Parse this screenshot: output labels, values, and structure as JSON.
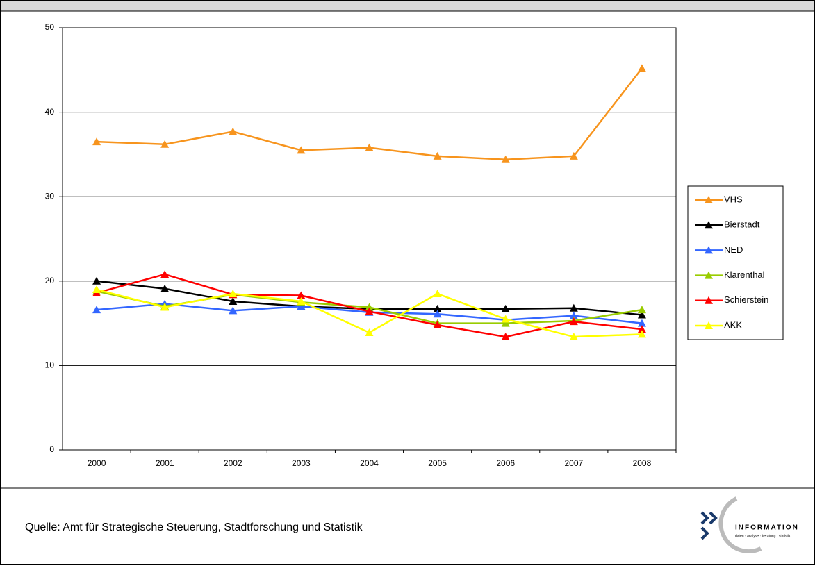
{
  "chart_data": {
    "type": "line",
    "categories": [
      "2000",
      "2001",
      "2002",
      "2003",
      "2004",
      "2005",
      "2006",
      "2007",
      "2008"
    ],
    "series": [
      {
        "name": "VHS",
        "color": "#f7941d",
        "values": [
          36.5,
          36.2,
          37.7,
          35.5,
          35.8,
          34.8,
          34.4,
          34.8,
          45.2
        ]
      },
      {
        "name": "Bierstadt",
        "color": "#000000",
        "values": [
          20.0,
          19.1,
          17.6,
          17.0,
          16.7,
          16.7,
          16.7,
          16.8,
          16.0
        ]
      },
      {
        "name": "NED",
        "color": "#3366ff",
        "values": [
          16.6,
          17.3,
          16.5,
          17.0,
          16.3,
          16.1,
          15.4,
          15.9,
          15.0
        ]
      },
      {
        "name": "Klarenthal",
        "color": "#99cc00",
        "values": [
          18.8,
          17.0,
          18.4,
          17.5,
          16.9,
          15.0,
          15.0,
          15.3,
          16.6
        ]
      },
      {
        "name": "Schierstein",
        "color": "#ff0000",
        "values": [
          18.6,
          20.8,
          18.4,
          18.3,
          16.4,
          14.8,
          13.4,
          15.2,
          14.3
        ]
      },
      {
        "name": "AKK",
        "color": "#ffff00",
        "values": [
          19.0,
          16.9,
          18.5,
          17.6,
          13.9,
          18.5,
          15.5,
          13.4,
          13.7
        ]
      }
    ],
    "ylim": [
      0,
      50
    ],
    "yticks": [
      0,
      10,
      20,
      30,
      40,
      50
    ],
    "grid": true,
    "legend": "right"
  },
  "footer": {
    "source": "Quelle:  Amt für Strategische Steuerung, Stadtforschung und Statistik"
  },
  "logo": {
    "text": "INFORMATION",
    "subtext": "daten · analyse · beratung · statistik"
  }
}
